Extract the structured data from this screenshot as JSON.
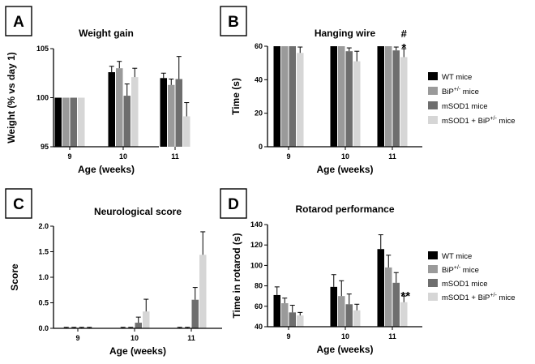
{
  "colors": {
    "wt": "#000000",
    "bip": "#9a9a9a",
    "msod1": "#6e6e6e",
    "msod1bip": "#d6d6d6",
    "err": "#000000"
  },
  "legend": [
    {
      "key": "wt",
      "text": "WT mice"
    },
    {
      "key": "bip",
      "text": "BiP",
      "sup": "+/-",
      "after": " mice"
    },
    {
      "key": "msod1",
      "text": "mSOD1 mice"
    },
    {
      "key": "msod1bip",
      "text": "mSOD1 + BiP",
      "sup": "+/-",
      "after": " mice"
    }
  ],
  "chart_data": [
    {
      "panel": "A",
      "type": "bar",
      "title": "Weight gain",
      "xlabel": "Age (weeks)",
      "ylabel": "Weight (% vs day 1)",
      "ylim": [
        95,
        105
      ],
      "yticks": [
        "95",
        "100",
        "105"
      ],
      "categories": [
        "9",
        "10",
        "11"
      ],
      "series": [
        {
          "name": "WT mice",
          "key": "wt",
          "values": [
            100,
            102.6,
            102.0
          ],
          "errors": [
            0,
            0.6,
            0.5
          ]
        },
        {
          "name": "BiP+/- mice",
          "key": "bip",
          "values": [
            100,
            103.0,
            101.3
          ],
          "errors": [
            0,
            0.7,
            0.6
          ]
        },
        {
          "name": "mSOD1 mice",
          "key": "msod1",
          "values": [
            100,
            100.2,
            101.9
          ],
          "errors": [
            0,
            1.2,
            2.3
          ]
        },
        {
          "name": "mSOD1 + BiP+/- mice",
          "key": "msod1bip",
          "values": [
            100,
            102.1,
            98.1
          ],
          "errors": [
            0,
            0.9,
            1.4
          ]
        }
      ],
      "annotations": [],
      "legend": "none"
    },
    {
      "panel": "B",
      "type": "bar",
      "title": "Hanging wire",
      "xlabel": "Age (weeks)",
      "ylabel": "Time (s)",
      "ylim": [
        0,
        60
      ],
      "yticks": [
        "0",
        "20",
        "40",
        "60"
      ],
      "categories": [
        "9",
        "10",
        "11"
      ],
      "series": [
        {
          "name": "WT mice",
          "key": "wt",
          "values": [
            60,
            60,
            60
          ],
          "errors": [
            0,
            0,
            0
          ]
        },
        {
          "name": "BiP+/- mice",
          "key": "bip",
          "values": [
            60,
            60,
            60
          ],
          "errors": [
            0,
            0,
            0
          ]
        },
        {
          "name": "mSOD1 mice",
          "key": "msod1",
          "values": [
            60,
            57,
            57.5
          ],
          "errors": [
            0,
            2,
            2
          ]
        },
        {
          "name": "mSOD1 + BiP+/- mice",
          "key": "msod1bip",
          "values": [
            56,
            51,
            53.5
          ],
          "errors": [
            3.5,
            6,
            5
          ]
        }
      ],
      "annotations": [
        {
          "text": "#",
          "category": 2,
          "series": 3,
          "stack": 1
        },
        {
          "text": "*",
          "category": 2,
          "series": 3,
          "stack": 0
        }
      ],
      "legend": "right"
    },
    {
      "panel": "C",
      "type": "bar",
      "title": "Neurological score",
      "xlabel": "Age (weeks)",
      "ylabel": "Score",
      "ylim": [
        0,
        2.0
      ],
      "yticks": [
        "0.0",
        "0.5",
        "1.0",
        "1.5",
        "2.0"
      ],
      "categories": [
        "9",
        "10",
        "11"
      ],
      "series": [
        {
          "name": "WT mice",
          "key": "wt",
          "values": [
            0,
            0,
            0
          ],
          "errors": [
            0.02,
            0.02,
            0.02
          ]
        },
        {
          "name": "BiP+/- mice",
          "key": "bip",
          "values": [
            0,
            0,
            0
          ],
          "errors": [
            0.02,
            0.02,
            0.02
          ]
        },
        {
          "name": "mSOD1 mice",
          "key": "msod1",
          "values": [
            0,
            0.11,
            0.56
          ],
          "errors": [
            0.02,
            0.11,
            0.24
          ]
        },
        {
          "name": "mSOD1 + BiP+/- mice",
          "key": "msod1bip",
          "values": [
            0,
            0.33,
            1.44
          ],
          "errors": [
            0.02,
            0.24,
            0.45
          ]
        }
      ],
      "annotations": [],
      "legend": "none"
    },
    {
      "panel": "D",
      "type": "bar",
      "title": "Rotarod performance",
      "xlabel": "Age (weeks)",
      "ylabel": "Time in rotarod (s)",
      "ylim": [
        40,
        140
      ],
      "yticks": [
        "40",
        "60",
        "80",
        "100",
        "120",
        "140"
      ],
      "categories": [
        "9",
        "10",
        "11"
      ],
      "series": [
        {
          "name": "WT mice",
          "key": "wt",
          "values": [
            71,
            79,
            116
          ],
          "errors": [
            8,
            12,
            14
          ]
        },
        {
          "name": "BiP+/- mice",
          "key": "bip",
          "values": [
            63,
            70,
            98
          ],
          "errors": [
            5,
            15,
            12
          ]
        },
        {
          "name": "mSOD1 mice",
          "key": "msod1",
          "values": [
            54,
            62,
            83
          ],
          "errors": [
            7,
            10,
            10
          ]
        },
        {
          "name": "mSOD1 + BiP+/- mice",
          "key": "msod1bip",
          "values": [
            51,
            56,
            64
          ],
          "errors": [
            3,
            6,
            6
          ]
        }
      ],
      "annotations": [
        {
          "text": "**",
          "category": 2,
          "series": 3,
          "stack": 0
        }
      ],
      "legend": "right"
    }
  ]
}
